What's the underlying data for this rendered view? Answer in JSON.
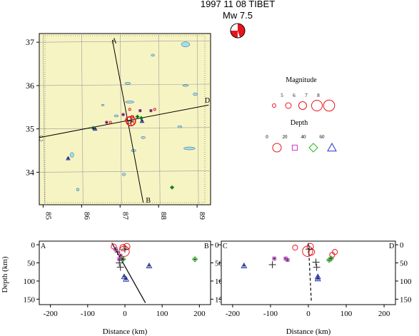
{
  "title": {
    "line1": "1997 11 08 TIBET",
    "line2": "Mw  7.5"
  },
  "colors": {
    "map_bg": "#f7f4c4",
    "water": "#9fe0ee",
    "grid": "#9a9a9a",
    "red": "#e8141c",
    "magenta": "#cc33cc",
    "green": "#22bb22",
    "blue": "#2233cc",
    "dark": "#222222"
  },
  "legend": {
    "magnitude_title": "Magnitude",
    "magnitude_ticks": [
      "5",
      "6",
      "7",
      "8"
    ],
    "depth_title": "Depth",
    "depth_ticks": [
      "0",
      "20",
      "40",
      "60"
    ]
  },
  "chart_data": [
    {
      "type": "scatter",
      "panel": "map",
      "xlim": [
        84.9,
        89.35
      ],
      "ylim": [
        33.25,
        37.2
      ],
      "x_ticks": [
        "85",
        "86",
        "87",
        "88",
        "89"
      ],
      "y_ticks": [
        "34",
        "35",
        "36",
        "37"
      ],
      "profile_labels": [
        "A",
        "B",
        "C",
        "D"
      ],
      "profiles": [
        {
          "name": "A-B",
          "from": [
            86.8,
            37.05
          ],
          "to": [
            87.6,
            33.3
          ]
        },
        {
          "name": "C-D",
          "from": [
            84.9,
            34.8
          ],
          "to": [
            89.3,
            35.55
          ]
        }
      ],
      "mainshock": {
        "lon": 87.28,
        "lat": 35.18,
        "mag": 7.5
      },
      "events": [
        {
          "lon": 87.25,
          "lat": 35.45,
          "depth_class": "0-20",
          "mag": 5.0
        },
        {
          "lon": 87.32,
          "lat": 35.28,
          "depth_class": "0-20",
          "mag": 5.2
        },
        {
          "lon": 87.22,
          "lat": 35.2,
          "depth_class": "0-20",
          "mag": 6.6
        },
        {
          "lon": 87.32,
          "lat": 35.12,
          "depth_class": "0-20",
          "mag": 5.4
        },
        {
          "lon": 86.75,
          "lat": 35.15,
          "depth_class": "0-20",
          "mag": 5.0
        },
        {
          "lon": 87.9,
          "lat": 35.45,
          "depth_class": "0-20",
          "mag": 5.0
        },
        {
          "lon": 86.65,
          "lat": 35.15,
          "depth_class": "20-40",
          "mag": 5.0
        },
        {
          "lon": 87.52,
          "lat": 35.42,
          "depth_class": "20-40",
          "mag": 5.0
        },
        {
          "lon": 87.8,
          "lat": 35.42,
          "depth_class": "20-40",
          "mag": 5.0
        },
        {
          "lon": 87.08,
          "lat": 35.33,
          "depth_class": "20-40",
          "mag": 5.0
        },
        {
          "lon": 87.45,
          "lat": 35.28,
          "depth_class": "40-60",
          "mag": 5.0
        },
        {
          "lon": 87.55,
          "lat": 35.25,
          "depth_class": "40-60",
          "mag": 5.0
        },
        {
          "lon": 88.35,
          "lat": 33.65,
          "depth_class": "40-60",
          "mag": 5.0
        },
        {
          "lon": 86.3,
          "lat": 35.02,
          "depth_class": "40-60",
          "mag": 5.0
        },
        {
          "lon": 87.57,
          "lat": 35.18,
          "depth_class": ">60",
          "mag": 5.0
        },
        {
          "lon": 85.65,
          "lat": 34.32,
          "depth_class": ">60",
          "mag": 5.0
        },
        {
          "lon": 86.35,
          "lat": 35.0,
          "depth_class": ">60",
          "mag": 5.0
        }
      ]
    },
    {
      "type": "scatter",
      "panel": "section-AB",
      "left_label": "A",
      "right_label": "B",
      "xlabel": "Distance (km)",
      "ylabel": "Depth (km)",
      "xlim": [
        -230,
        230
      ],
      "ylim": [
        165,
        -10
      ],
      "x_ticks": [
        "-200",
        "-100",
        "0",
        "100",
        "200"
      ],
      "y_ticks": [
        "0",
        "50",
        "100",
        "150"
      ],
      "fault_line": {
        "from": [
          -35,
          -5
        ],
        "to": [
          55,
          160
        ]
      },
      "events": [
        {
          "x": -30,
          "depth": 5,
          "kind": "circle",
          "size": 4
        },
        {
          "x": -5,
          "depth": 8,
          "kind": "circle",
          "size": 5
        },
        {
          "x": 5,
          "depth": 5,
          "kind": "circle",
          "size": 5
        },
        {
          "x": -2,
          "depth": 18,
          "kind": "circle",
          "size": 8
        },
        {
          "x": 0,
          "depth": 12,
          "kind": "cross",
          "size": 5
        },
        {
          "x": -20,
          "depth": 20,
          "kind": "cross",
          "size": 4
        },
        {
          "x": -25,
          "depth": 12,
          "kind": "square",
          "size": 4
        },
        {
          "x": -12,
          "depth": 30,
          "kind": "square",
          "size": 4
        },
        {
          "x": -8,
          "depth": 38,
          "kind": "square",
          "size": 4
        },
        {
          "x": -15,
          "depth": 40,
          "kind": "square",
          "size": 4
        },
        {
          "x": -5,
          "depth": 40,
          "kind": "diamond",
          "size": 4
        },
        {
          "x": 188,
          "depth": 40,
          "kind": "diamond",
          "size": 4
        },
        {
          "x": -15,
          "depth": 50,
          "kind": "cross",
          "size": 5
        },
        {
          "x": -12,
          "depth": 62,
          "kind": "cross",
          "size": 5
        },
        {
          "x": 65,
          "depth": 58,
          "kind": "triangle",
          "size": 4
        },
        {
          "x": -2,
          "depth": 88,
          "kind": "triangle",
          "size": 4
        },
        {
          "x": 3,
          "depth": 95,
          "kind": "triangle",
          "size": 4
        }
      ]
    },
    {
      "type": "scatter",
      "panel": "section-CD",
      "left_label": "C",
      "right_label": "D",
      "xlabel": "Distance (km)",
      "xlim": [
        -230,
        230
      ],
      "ylim": [
        165,
        -10
      ],
      "x_ticks": [
        "-200",
        "-100",
        "0",
        "100",
        "200"
      ],
      "y_ticks": [
        "0",
        "50",
        "100",
        "150"
      ],
      "fault_line": {
        "from": [
          0,
          -5
        ],
        "to": [
          8,
          160
        ],
        "dashed": true
      },
      "events": [
        {
          "x": -35,
          "depth": 8,
          "kind": "circle",
          "size": 4
        },
        {
          "x": 5,
          "depth": 5,
          "kind": "circle",
          "size": 5
        },
        {
          "x": -2,
          "depth": 18,
          "kind": "circle",
          "size": 8
        },
        {
          "x": 8,
          "depth": 20,
          "kind": "circle",
          "size": 5
        },
        {
          "x": 2,
          "depth": 12,
          "kind": "cross",
          "size": 5
        },
        {
          "x": 70,
          "depth": 20,
          "kind": "circle",
          "size": 4
        },
        {
          "x": 63,
          "depth": 28,
          "kind": "circle",
          "size": 4
        },
        {
          "x": -90,
          "depth": 38,
          "kind": "square",
          "size": 4
        },
        {
          "x": -60,
          "depth": 38,
          "kind": "square",
          "size": 4
        },
        {
          "x": -55,
          "depth": 42,
          "kind": "square",
          "size": 4
        },
        {
          "x": 55,
          "depth": 42,
          "kind": "diamond",
          "size": 4
        },
        {
          "x": 60,
          "depth": 38,
          "kind": "diamond",
          "size": 4
        },
        {
          "x": -95,
          "depth": 55,
          "kind": "cross",
          "size": 5
        },
        {
          "x": 20,
          "depth": 48,
          "kind": "cross",
          "size": 5
        },
        {
          "x": 22,
          "depth": 62,
          "kind": "cross",
          "size": 5
        },
        {
          "x": -170,
          "depth": 58,
          "kind": "triangle",
          "size": 4
        },
        {
          "x": 25,
          "depth": 88,
          "kind": "triangle",
          "size": 4
        },
        {
          "x": 25,
          "depth": 94,
          "kind": "triangle",
          "size": 4
        }
      ]
    }
  ]
}
